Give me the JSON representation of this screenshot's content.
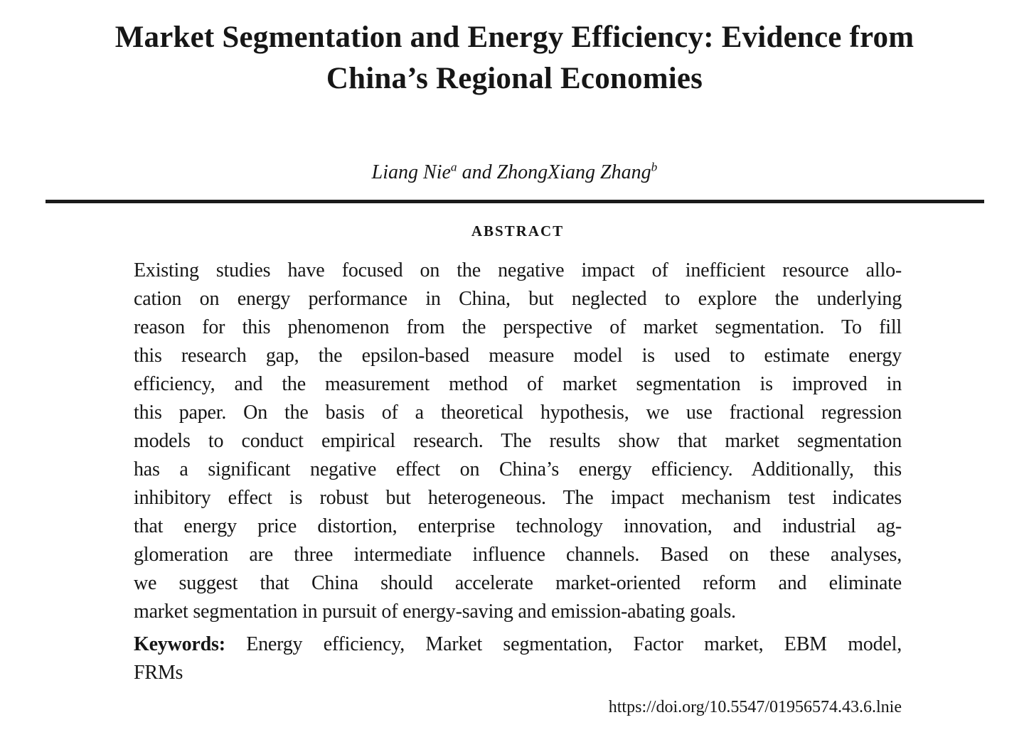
{
  "paper": {
    "title_line1": "Market Segmentation and Energy Efficiency: Evidence from",
    "title_line2": "China’s Regional Economies"
  },
  "authors": {
    "author1_name": "Liang Nie",
    "author1_superscript": "a",
    "connector": " and ",
    "author2_name": "ZhongXiang Zhang",
    "author2_superscript": "b"
  },
  "abstract": {
    "heading": "ABSTRACT",
    "lines": [
      "Existing studies have focused on the negative impact of inefficient resource allo-",
      "cation on energy performance in China, but neglected to explore the underlying",
      "reason for this phenomenon from the perspective of market segmentation. To fill",
      "this research gap, the epsilon-based measure model is used to estimate energy",
      "efficiency, and the measurement method of market segmentation is improved in",
      "this paper. On the basis of a theoretical hypothesis, we use fractional regression",
      "models to conduct empirical research. The results show that market segmentation",
      "has a significant negative effect on China’s energy efficiency. Additionally, this",
      "inhibitory effect is robust but heterogeneous. The impact mechanism test indicates",
      "that energy price distortion, enterprise technology innovation, and industrial ag-",
      "glomeration are three intermediate influence channels. Based on these analyses,",
      "we suggest that China should accelerate market-oriented reform and eliminate",
      "market segmentation in pursuit of energy-saving and emission-abating goals."
    ]
  },
  "keywords": {
    "label": "Keywords:",
    "line1_rest": "Energy efficiency, Market segmentation, Factor market, EBM model,",
    "line2": "FRMs"
  },
  "doi": "https://doi.org/10.5547/01956574.43.6.lnie",
  "colors": {
    "text": "#161616",
    "rule": "#1b1b1b",
    "background": "#ffffff"
  }
}
